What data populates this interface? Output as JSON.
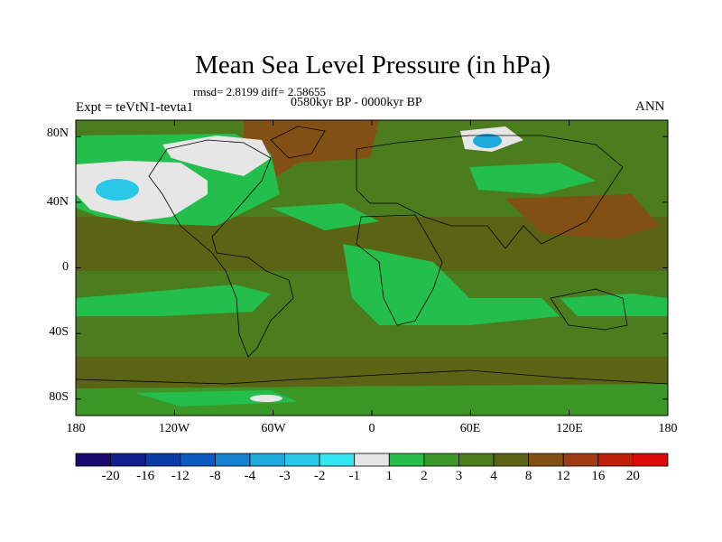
{
  "title": "Mean Sea Level Pressure (in hPa)",
  "stats_line": "rmsd= 2.8199 diff= 2.58655",
  "period": "0580kyr BP - 0000kyr BP",
  "experiment": "Expt = teVtN1-tevta1",
  "season": "ANN",
  "lat_labels": [
    "80N",
    "40N",
    "0",
    "40S",
    "80S"
  ],
  "lon_labels": [
    "180",
    "120W",
    "60W",
    "0",
    "60E",
    "120E",
    "180"
  ],
  "colorbar": {
    "labels": [
      "-20",
      "-16",
      "-12",
      "-8",
      "-4",
      "-3",
      "-2",
      "-1",
      "1",
      "2",
      "3",
      "4",
      "8",
      "12",
      "16",
      "20"
    ],
    "colors": [
      "#1a0a6e",
      "#141e8c",
      "#0a3ca8",
      "#0a5ac0",
      "#1480d2",
      "#1eaadc",
      "#28c8e6",
      "#32e6f0",
      "#e6e6e6",
      "#23be4b",
      "#3c9628",
      "#4b7d1e",
      "#5a6414",
      "#825014",
      "#a03c14",
      "#be1e0a",
      "#dc0a0a"
    ]
  },
  "legend_colors": {
    "c1": "#e6e6e6",
    "c2": "#23be4b",
    "c3": "#3c9628",
    "c4": "#4b7d1e",
    "c8": "#5a6414",
    "c12": "#825014",
    "cn2": "#28c8e6",
    "cn3": "#1eaadc"
  }
}
